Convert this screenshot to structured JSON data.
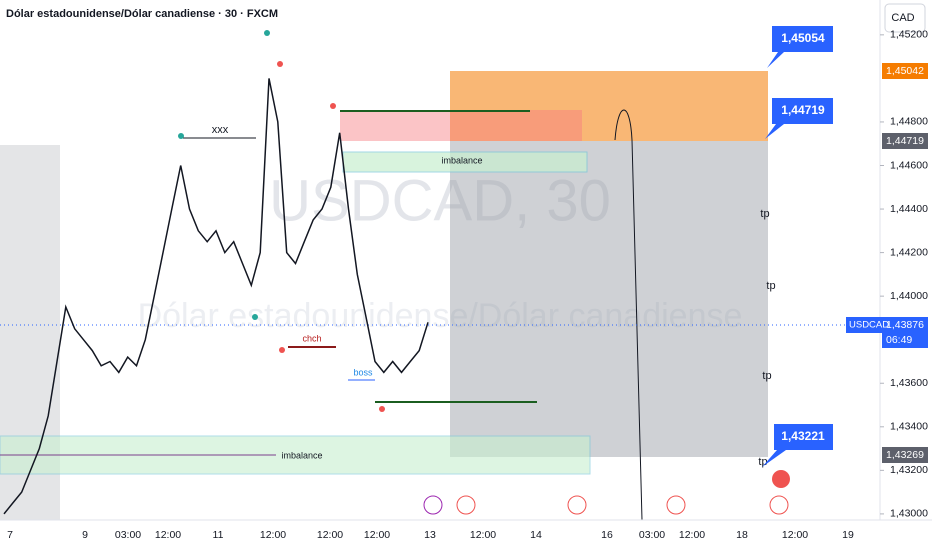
{
  "header": {
    "title": "Dólar estadounidense/Dólar canadiense · 30 · FXCM",
    "currency": "CAD"
  },
  "watermark": {
    "symbol": "USDCAD, 30",
    "name": "Dólar estadounidense/Dólar canadiense"
  },
  "chart_data": {
    "type": "line",
    "color": "#131722",
    "values": [
      1.43,
      1.4305,
      1.431,
      1.432,
      1.433,
      1.4345,
      1.437,
      1.4395,
      1.4385,
      1.438,
      1.4375,
      1.4368,
      1.437,
      1.4365,
      1.4372,
      1.4368,
      1.438,
      1.44,
      1.442,
      1.444,
      1.446,
      1.444,
      1.443,
      1.4425,
      1.443,
      1.442,
      1.4425,
      1.4415,
      1.4405,
      1.442,
      1.45,
      1.448,
      1.442,
      1.4415,
      1.4425,
      1.4435,
      1.444,
      1.445,
      1.4475,
      1.444,
      1.441,
      1.439,
      1.437,
      1.4365,
      1.437,
      1.4365,
      1.437,
      1.4375,
      1.4388
    ],
    "ylim": [
      1.42972,
      1.4536
    ],
    "yticks": [
      {
        "value": 1.452,
        "label": "1,45200"
      },
      {
        "value": 1.448,
        "label": "1,44800"
      },
      {
        "value": 1.446,
        "label": "1,44600"
      },
      {
        "value": 1.444,
        "label": "1,44400"
      },
      {
        "value": 1.442,
        "label": "1,44200"
      },
      {
        "value": 1.44,
        "label": "1,44000"
      },
      {
        "value": 1.436,
        "label": "1,43600"
      },
      {
        "value": 1.434,
        "label": "1,43400"
      },
      {
        "value": 1.432,
        "label": "1,43200"
      },
      {
        "value": 1.43,
        "label": "1,43000"
      }
    ],
    "xtick_labels": [
      "7",
      "9",
      "03:00",
      "12:00",
      "11",
      "12:00",
      "12:00",
      "12:00",
      "13",
      "12:00",
      "14",
      "16",
      "03:00",
      "12:00",
      "18",
      "12:00",
      "19"
    ],
    "annotations": {
      "xxx": "xxx",
      "chch": "chch",
      "boss": "boss",
      "imbalance_top": "imbalance",
      "imbalance_bottom": "imbalance",
      "tp": [
        "tp",
        "tp",
        "tp",
        "tp"
      ]
    },
    "targets": [
      "1,45054",
      "1,44719",
      "1,43221"
    ],
    "price_labels": {
      "top": "1,45042",
      "entry": "1,44719",
      "symbol": "USDCAD",
      "current": "1,43876",
      "countdown": "06:49",
      "bottom": "1,43269"
    }
  }
}
